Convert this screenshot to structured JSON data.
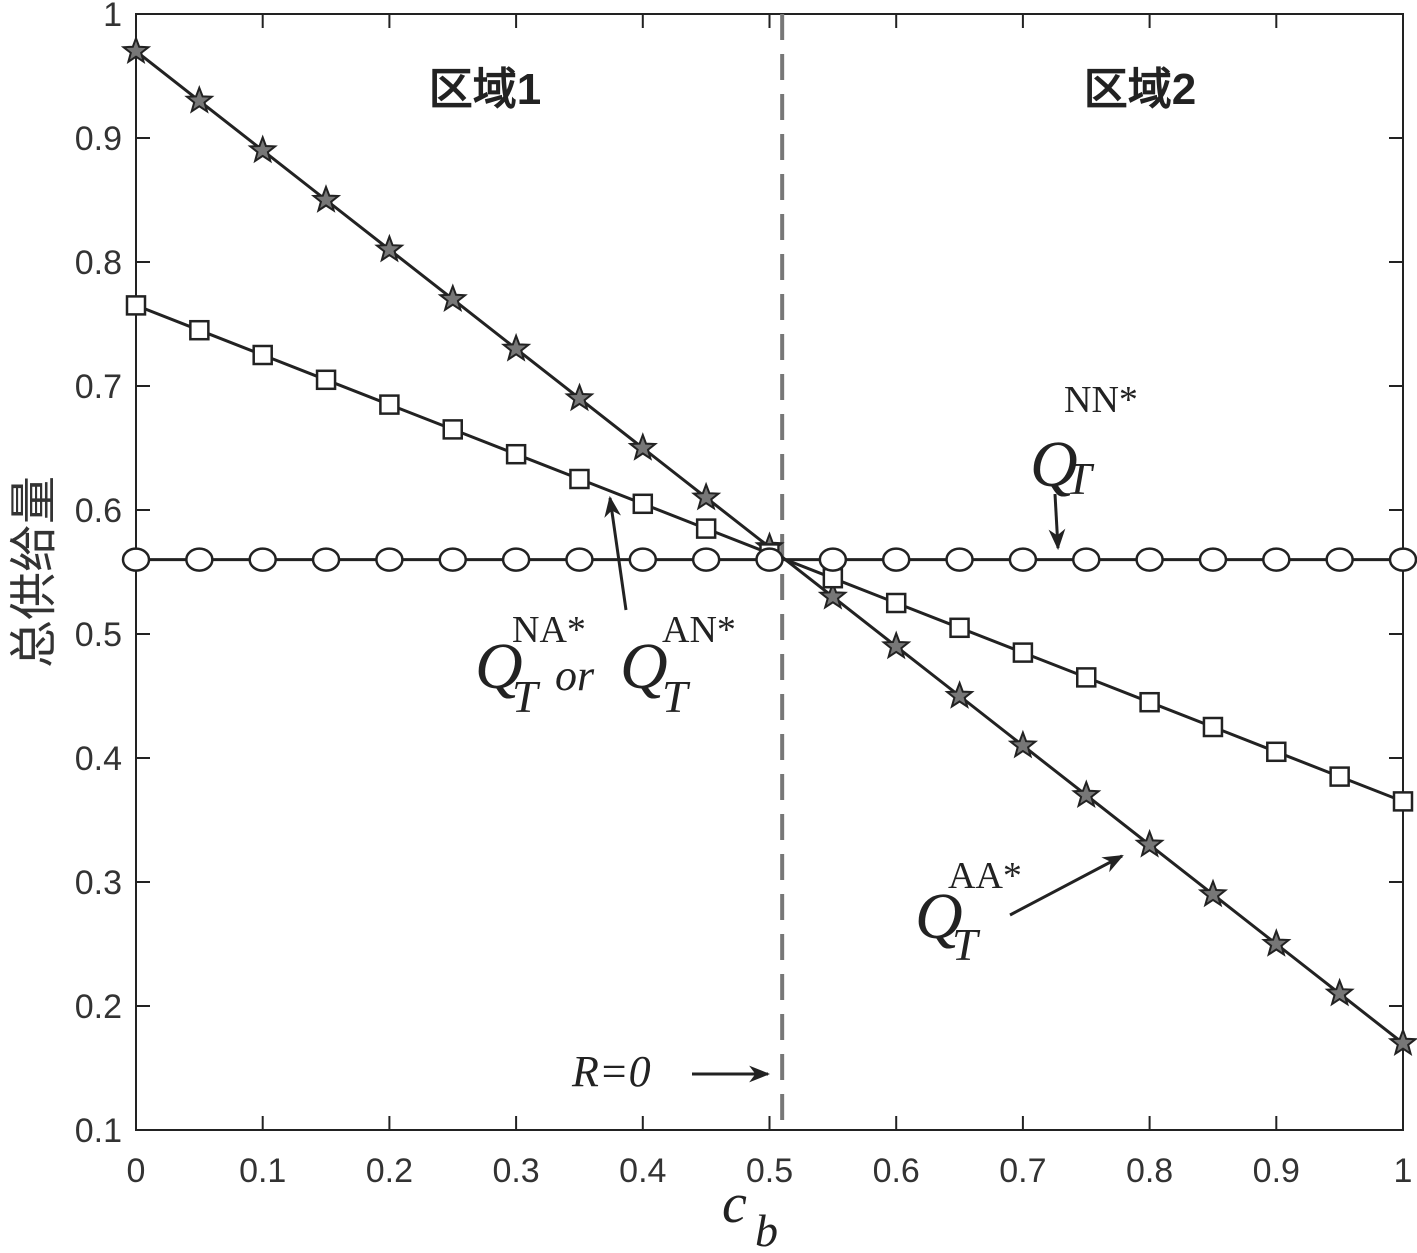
{
  "chart_data": {
    "type": "line",
    "x_label": {
      "main": "c",
      "sub": "b"
    },
    "y_label": "总供给量",
    "x": [
      0,
      0.05,
      0.1,
      0.15,
      0.2,
      0.25,
      0.3,
      0.35,
      0.4,
      0.45,
      0.5,
      0.55,
      0.6,
      0.65,
      0.7,
      0.75,
      0.8,
      0.85,
      0.9,
      0.95,
      1
    ],
    "series": [
      {
        "marker": "star",
        "color": "#222",
        "values": [
          0.97,
          0.93,
          0.89,
          0.85,
          0.81,
          0.77,
          0.73,
          0.69,
          0.65,
          0.61,
          0.57,
          0.53,
          0.49,
          0.45,
          0.41,
          0.37,
          0.33,
          0.29,
          0.25,
          0.21,
          0.17
        ]
      },
      {
        "marker": "square",
        "color": "#222",
        "values": [
          0.765,
          0.745,
          0.725,
          0.705,
          0.685,
          0.665,
          0.645,
          0.625,
          0.605,
          0.585,
          0.565,
          0.545,
          0.525,
          0.505,
          0.485,
          0.465,
          0.445,
          0.425,
          0.405,
          0.385,
          0.365
        ]
      },
      {
        "marker": "circle",
        "color": "#222",
        "values": [
          0.56,
          0.56,
          0.56,
          0.56,
          0.56,
          0.56,
          0.56,
          0.56,
          0.56,
          0.56,
          0.56,
          0.56,
          0.56,
          0.56,
          0.56,
          0.56,
          0.56,
          0.56,
          0.56,
          0.56,
          0.56
        ]
      }
    ],
    "xlim": [
      0,
      1
    ],
    "ylim": [
      0.1,
      1
    ],
    "xticks": [
      {
        "value": 0,
        "label": "0"
      },
      0.1,
      0.2,
      0.3,
      0.4,
      0.5,
      0.6,
      0.7,
      0.8,
      0.9,
      1
    ],
    "yticks": [
      0.1,
      0.2,
      0.3,
      0.4,
      0.5,
      0.6,
      0.7,
      0.8,
      0.9,
      1
    ],
    "reference_line": {
      "x": 0.51,
      "color": "#777"
    },
    "annotations": {
      "region1": "区域1",
      "region2": "区域2",
      "r_zero": "R=0",
      "nn": {
        "main": "Q",
        "sub": "T",
        "sup": "NN*"
      },
      "aa": {
        "main": "Q",
        "sub": "T",
        "sup": "AA*"
      },
      "na_an": {
        "main": "Q",
        "sub": "T",
        "sup": "NA*",
        "joiner": "or",
        "main2": "Q",
        "sub2": "T",
        "sup2": "AN*"
      }
    }
  }
}
